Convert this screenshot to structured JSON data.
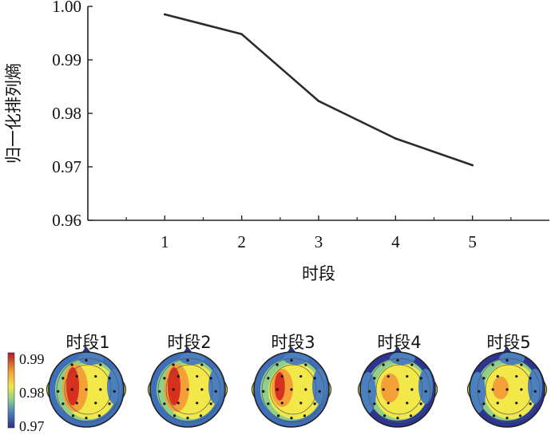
{
  "chart_data": [
    {
      "type": "line",
      "x": [
        1,
        2,
        3,
        4,
        5
      ],
      "values": [
        0.9985,
        0.9948,
        0.9823,
        0.9753,
        0.9703
      ],
      "xticks": [
        "1",
        "2",
        "3",
        "4",
        "5"
      ],
      "yticks": [
        "0.96",
        "0.97",
        "0.98",
        "0.99",
        "1.00"
      ],
      "xlabel": "时段",
      "ylabel": "归一化排列熵",
      "xlim": [
        0,
        6
      ],
      "ylim": [
        0.96,
        1.0
      ],
      "grid": false,
      "line_color": "#2b2b2b"
    },
    {
      "type": "heatmap",
      "maps": [
        {
          "label": "时段1",
          "level": 0.9985
        },
        {
          "label": "时段2",
          "level": 0.9948
        },
        {
          "label": "时段3",
          "level": 0.9823
        },
        {
          "label": "时段4",
          "level": 0.9753
        },
        {
          "label": "时段5",
          "level": 0.9703
        }
      ],
      "colorbar": {
        "ticks": [
          "0.99",
          "0.98",
          "0.97"
        ],
        "range": [
          0.97,
          0.99
        ],
        "colors": [
          "#b2182b",
          "#f4a038",
          "#f2e84a",
          "#8ed08b",
          "#4a7fc0",
          "#2c2f8c"
        ]
      }
    }
  ]
}
